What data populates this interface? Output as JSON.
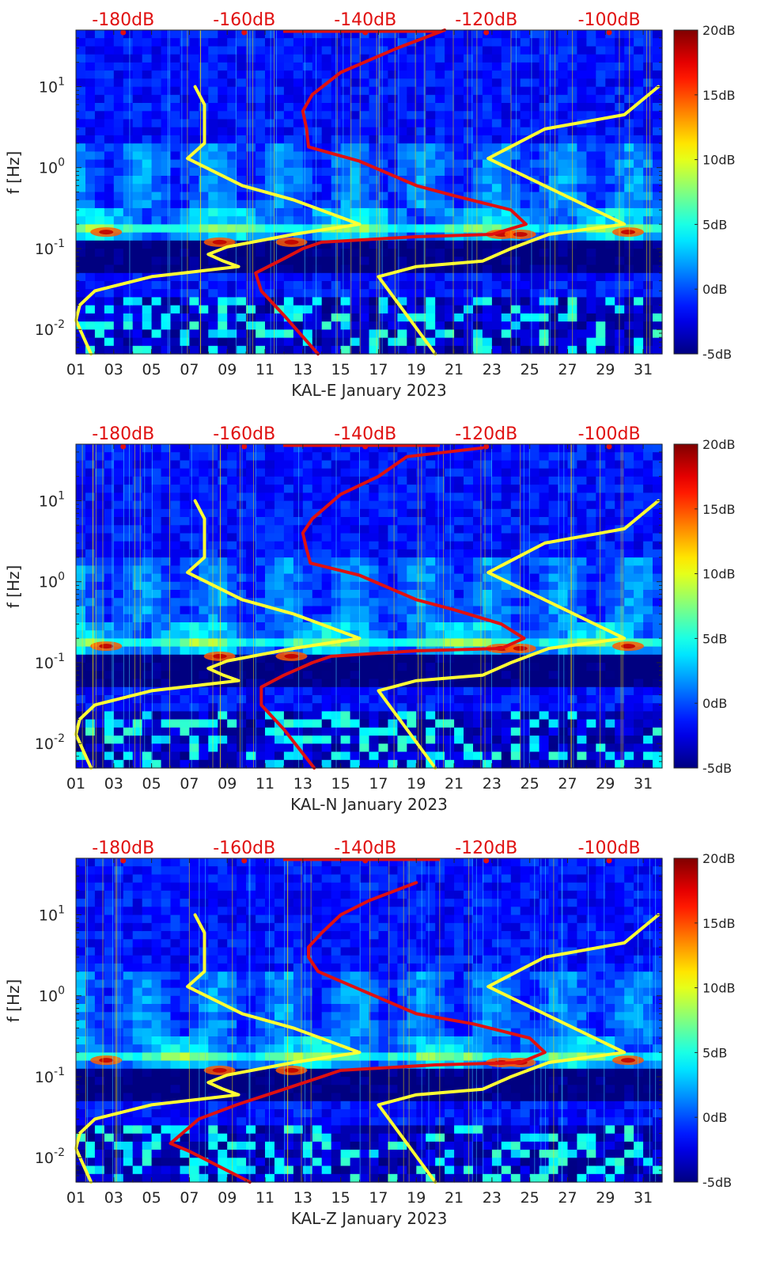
{
  "figure": {
    "background": "#ffffff",
    "colormap": "jet"
  },
  "chart_data": [
    {
      "type": "heatmap",
      "title": "KAL-E January 2023",
      "xlabel": "KAL-E January 2023",
      "ylabel": "f [Hz]",
      "x_range": [
        1,
        32
      ],
      "x_ticks": [
        "01",
        "03",
        "05",
        "07",
        "09",
        "11",
        "13",
        "15",
        "17",
        "19",
        "21",
        "23",
        "25",
        "27",
        "29",
        "31"
      ],
      "y_scale": "log",
      "y_range": [
        0.005,
        50
      ],
      "y_ticks": [
        {
          "value": 0.01,
          "base": "10",
          "exp": "-2"
        },
        {
          "value": 0.1,
          "base": "10",
          "exp": "-1"
        },
        {
          "value": 1,
          "base": "10",
          "exp": "0"
        },
        {
          "value": 10,
          "base": "10",
          "exp": "1"
        }
      ],
      "top_axis_labels": [
        "-180dB",
        "-160dB",
        "-140dB",
        "-120dB",
        "-100dB"
      ],
      "top_axis_positions_day": [
        3.5,
        9.9,
        16.3,
        22.7,
        29.2
      ],
      "colorbar": {
        "min": -5,
        "max": 20,
        "labels": [
          "20dB",
          "15dB",
          "10dB",
          "5dB",
          "0dB",
          "-5dB"
        ]
      },
      "series": [
        {
          "name": "noise-model-low",
          "color": "#ffff33",
          "points": [
            [
              7.3,
              10
            ],
            [
              7.8,
              6
            ],
            [
              7.8,
              2
            ],
            [
              6.9,
              1.3
            ],
            [
              9.8,
              0.6
            ],
            [
              12.5,
              0.4
            ],
            [
              16.0,
              0.2
            ],
            [
              12.5,
              0.15
            ],
            [
              9.0,
              0.105
            ],
            [
              8.0,
              0.085
            ],
            [
              8.8,
              0.07
            ],
            [
              9.6,
              0.06
            ],
            [
              5.0,
              0.045
            ],
            [
              2.0,
              0.03
            ],
            [
              1.2,
              0.02
            ],
            [
              1.0,
              0.013
            ],
            [
              1.8,
              0.005
            ]
          ]
        },
        {
          "name": "noise-model-high",
          "color": "#ffff33",
          "points": [
            [
              31.8,
              10
            ],
            [
              30.0,
              4.5
            ],
            [
              25.8,
              3.0
            ],
            [
              22.8,
              1.3
            ],
            [
              30.0,
              0.2
            ],
            [
              26.0,
              0.15
            ],
            [
              24.0,
              0.1
            ],
            [
              22.5,
              0.07
            ],
            [
              19.0,
              0.06
            ],
            [
              17.0,
              0.045
            ],
            [
              20.0,
              0.005
            ]
          ]
        },
        {
          "name": "noise-level-profile",
          "color": "#e01010",
          "points": [
            [
              20.5,
              50
            ],
            [
              18.0,
              30
            ],
            [
              15.0,
              15
            ],
            [
              13.5,
              8
            ],
            [
              13.0,
              5
            ],
            [
              13.2,
              3
            ],
            [
              13.3,
              1.8
            ],
            [
              16.0,
              1.2
            ],
            [
              19.0,
              0.6
            ],
            [
              21.0,
              0.45
            ],
            [
              24.0,
              0.3
            ],
            [
              24.8,
              0.2
            ],
            [
              23.0,
              0.15
            ],
            [
              19.0,
              0.14
            ],
            [
              14.0,
              0.12
            ],
            [
              13.0,
              0.1
            ],
            [
              12.0,
              0.075
            ],
            [
              10.5,
              0.05
            ],
            [
              10.8,
              0.03
            ],
            [
              12.0,
              0.015
            ],
            [
              13.8,
              0.005
            ]
          ]
        }
      ]
    },
    {
      "type": "heatmap",
      "title": "KAL-N January 2023",
      "xlabel": "KAL-N January 2023",
      "ylabel": "f [Hz]",
      "x_range": [
        1,
        32
      ],
      "x_ticks": [
        "01",
        "03",
        "05",
        "07",
        "09",
        "11",
        "13",
        "15",
        "17",
        "19",
        "21",
        "23",
        "25",
        "27",
        "29",
        "31"
      ],
      "y_scale": "log",
      "y_range": [
        0.005,
        50
      ],
      "y_ticks": [
        {
          "value": 0.01,
          "base": "10",
          "exp": "-2"
        },
        {
          "value": 0.1,
          "base": "10",
          "exp": "-1"
        },
        {
          "value": 1,
          "base": "10",
          "exp": "0"
        },
        {
          "value": 10,
          "base": "10",
          "exp": "1"
        }
      ],
      "top_axis_labels": [
        "-180dB",
        "-160dB",
        "-140dB",
        "-120dB",
        "-100dB"
      ],
      "top_axis_positions_day": [
        3.5,
        9.9,
        16.3,
        22.7,
        29.2
      ],
      "colorbar": {
        "min": -5,
        "max": 20,
        "labels": [
          "20dB",
          "15dB",
          "10dB",
          "5dB",
          "0dB",
          "-5dB"
        ]
      },
      "series": [
        {
          "name": "noise-model-low",
          "color": "#ffff33",
          "points": [
            [
              7.3,
              10
            ],
            [
              7.8,
              6
            ],
            [
              7.8,
              2
            ],
            [
              6.9,
              1.3
            ],
            [
              9.8,
              0.6
            ],
            [
              12.5,
              0.4
            ],
            [
              16.0,
              0.2
            ],
            [
              12.5,
              0.15
            ],
            [
              9.0,
              0.105
            ],
            [
              8.0,
              0.085
            ],
            [
              8.8,
              0.07
            ],
            [
              9.6,
              0.06
            ],
            [
              5.0,
              0.045
            ],
            [
              2.0,
              0.03
            ],
            [
              1.2,
              0.02
            ],
            [
              1.0,
              0.013
            ],
            [
              1.8,
              0.005
            ]
          ]
        },
        {
          "name": "noise-model-high",
          "color": "#ffff33",
          "points": [
            [
              31.8,
              10
            ],
            [
              30.0,
              4.5
            ],
            [
              25.8,
              3.0
            ],
            [
              22.8,
              1.3
            ],
            [
              30.0,
              0.2
            ],
            [
              26.0,
              0.15
            ],
            [
              24.0,
              0.1
            ],
            [
              22.5,
              0.07
            ],
            [
              19.0,
              0.06
            ],
            [
              17.0,
              0.045
            ],
            [
              20.0,
              0.005
            ]
          ]
        },
        {
          "name": "noise-level-profile",
          "color": "#e01010",
          "points": [
            [
              22.5,
              45
            ],
            [
              18.5,
              35
            ],
            [
              17.0,
              20
            ],
            [
              15.0,
              12
            ],
            [
              13.5,
              6
            ],
            [
              13.0,
              4
            ],
            [
              13.2,
              2.5
            ],
            [
              13.4,
              1.7
            ],
            [
              16.0,
              1.2
            ],
            [
              19.0,
              0.6
            ],
            [
              21.0,
              0.45
            ],
            [
              23.5,
              0.3
            ],
            [
              24.7,
              0.2
            ],
            [
              23.5,
              0.15
            ],
            [
              19.0,
              0.14
            ],
            [
              14.5,
              0.12
            ],
            [
              13.5,
              0.1
            ],
            [
              12.0,
              0.07
            ],
            [
              10.8,
              0.05
            ],
            [
              10.8,
              0.03
            ],
            [
              12.0,
              0.015
            ],
            [
              13.6,
              0.005
            ]
          ]
        }
      ]
    },
    {
      "type": "heatmap",
      "title": "KAL-Z January 2023",
      "xlabel": "KAL-Z January 2023",
      "ylabel": "f [Hz]",
      "x_range": [
        1,
        32
      ],
      "x_ticks": [
        "01",
        "03",
        "05",
        "07",
        "09",
        "11",
        "13",
        "15",
        "17",
        "19",
        "21",
        "23",
        "25",
        "27",
        "29",
        "31"
      ],
      "y_scale": "log",
      "y_range": [
        0.005,
        50
      ],
      "y_ticks": [
        {
          "value": 0.01,
          "base": "10",
          "exp": "-2"
        },
        {
          "value": 0.1,
          "base": "10",
          "exp": "-1"
        },
        {
          "value": 1,
          "base": "10",
          "exp": "0"
        },
        {
          "value": 10,
          "base": "10",
          "exp": "1"
        }
      ],
      "top_axis_labels": [
        "-180dB",
        "-160dB",
        "-140dB",
        "-120dB",
        "-100dB"
      ],
      "top_axis_positions_day": [
        3.5,
        9.9,
        16.3,
        22.7,
        29.2
      ],
      "colorbar": {
        "min": -5,
        "max": 20,
        "labels": [
          "20dB",
          "15dB",
          "10dB",
          "5dB",
          "0dB",
          "-5dB"
        ]
      },
      "series": [
        {
          "name": "noise-model-low",
          "color": "#ffff33",
          "points": [
            [
              7.3,
              10
            ],
            [
              7.8,
              6
            ],
            [
              7.8,
              2
            ],
            [
              6.9,
              1.3
            ],
            [
              9.8,
              0.6
            ],
            [
              12.5,
              0.4
            ],
            [
              16.0,
              0.2
            ],
            [
              12.5,
              0.15
            ],
            [
              9.0,
              0.105
            ],
            [
              8.0,
              0.085
            ],
            [
              8.8,
              0.07
            ],
            [
              9.6,
              0.06
            ],
            [
              5.0,
              0.045
            ],
            [
              2.0,
              0.03
            ],
            [
              1.2,
              0.02
            ],
            [
              1.0,
              0.013
            ],
            [
              1.8,
              0.005
            ]
          ]
        },
        {
          "name": "noise-model-high",
          "color": "#ffff33",
          "points": [
            [
              31.8,
              10
            ],
            [
              30.0,
              4.5
            ],
            [
              25.8,
              3.0
            ],
            [
              22.8,
              1.3
            ],
            [
              30.0,
              0.2
            ],
            [
              26.0,
              0.15
            ],
            [
              24.0,
              0.1
            ],
            [
              22.5,
              0.07
            ],
            [
              19.0,
              0.06
            ],
            [
              17.0,
              0.045
            ],
            [
              20.0,
              0.005
            ]
          ]
        },
        {
          "name": "noise-level-profile",
          "color": "#e01010",
          "points": [
            [
              19.0,
              25
            ],
            [
              16.5,
              15
            ],
            [
              15.0,
              10
            ],
            [
              14.0,
              6
            ],
            [
              13.3,
              4
            ],
            [
              13.3,
              3
            ],
            [
              13.8,
              2
            ],
            [
              16.0,
              1.2
            ],
            [
              19.0,
              0.6
            ],
            [
              22.0,
              0.45
            ],
            [
              25.0,
              0.3
            ],
            [
              25.8,
              0.2
            ],
            [
              24.5,
              0.15
            ],
            [
              20.0,
              0.14
            ],
            [
              15.0,
              0.12
            ],
            [
              14.0,
              0.1
            ],
            [
              12.0,
              0.07
            ],
            [
              9.5,
              0.045
            ],
            [
              7.5,
              0.03
            ],
            [
              6.0,
              0.015
            ],
            [
              7.0,
              0.012
            ],
            [
              10.2,
              0.005
            ]
          ]
        }
      ]
    }
  ]
}
